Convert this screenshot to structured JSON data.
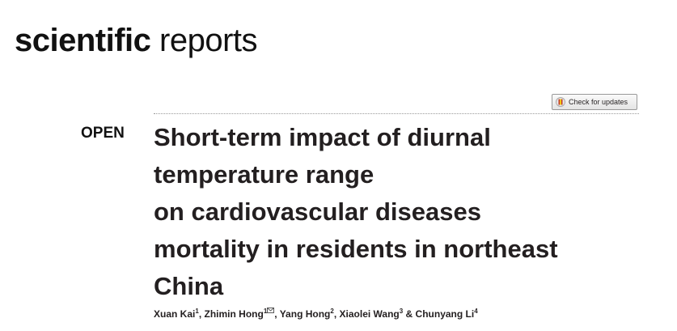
{
  "journal": {
    "bold": "scientific",
    "light": "reports"
  },
  "update_badge": "Check for updates",
  "access": "OPEN",
  "title": [
    "Short-term impact of diurnal",
    "temperature range",
    "on cardiovascular diseases",
    "mortality in residents in northeast",
    "China"
  ],
  "authors": [
    {
      "name": "Xuan Kai",
      "affil": "1",
      "sep": ", "
    },
    {
      "name": "Zhimin Hong",
      "affil": "1",
      "sep": ", "
    },
    {
      "name": "Yang Hong",
      "affil": "2",
      "sep": ", "
    },
    {
      "name": "Xiaolei Wang",
      "affil": "3",
      "sep": " & "
    },
    {
      "name": "Chunyang Li",
      "affil": "4"
    }
  ]
}
